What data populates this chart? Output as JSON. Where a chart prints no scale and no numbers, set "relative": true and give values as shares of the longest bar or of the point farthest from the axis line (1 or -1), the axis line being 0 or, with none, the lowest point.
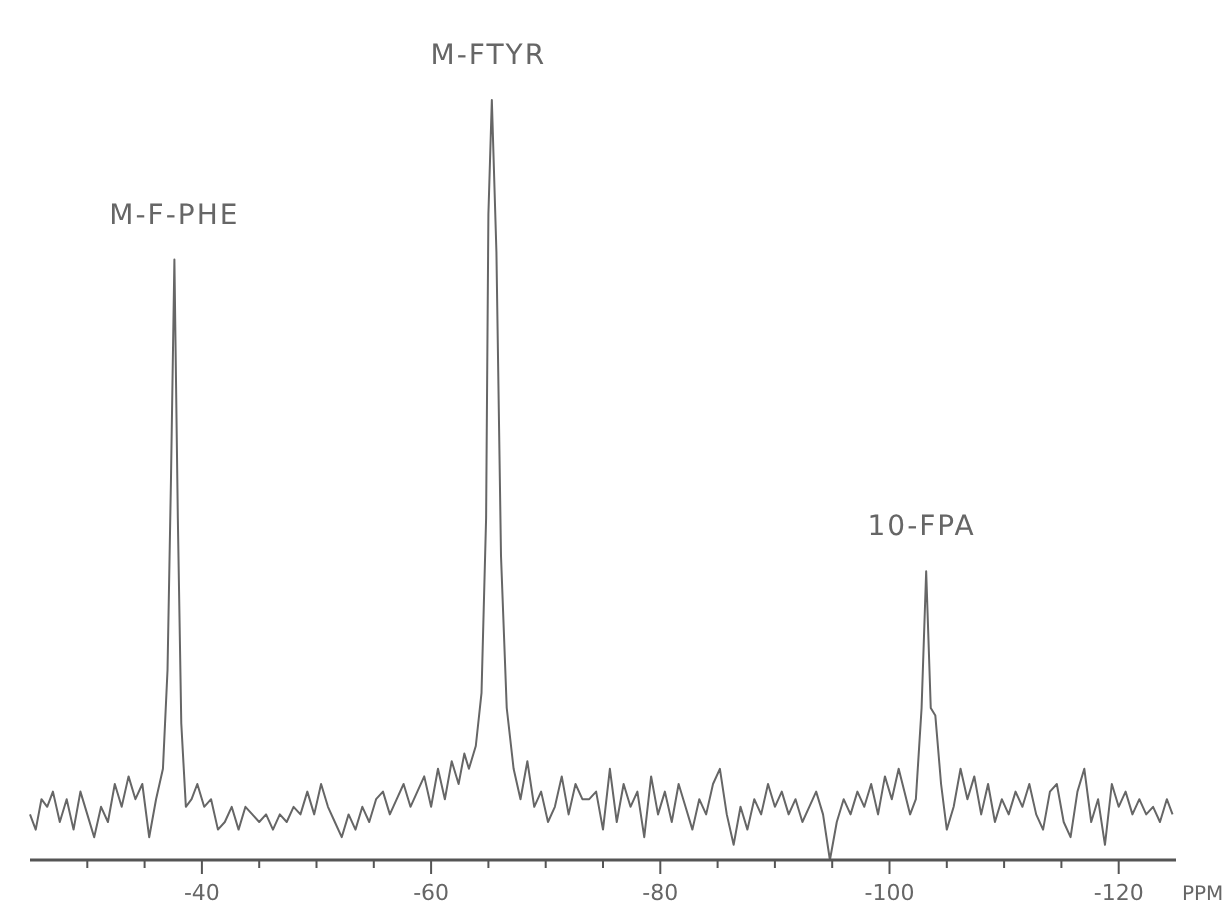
{
  "chart_data": {
    "type": "line",
    "relative": true,
    "xlabel": "PPM",
    "xlim": [
      -25,
      -125
    ],
    "xticks": [
      {
        "value": -30,
        "label": null
      },
      {
        "value": -35,
        "label": null
      },
      -40,
      {
        "value": -45,
        "label": null
      },
      {
        "value": -50,
        "label": null
      },
      {
        "value": -55,
        "label": null
      },
      -60,
      {
        "value": -65,
        "label": null
      },
      {
        "value": -70,
        "label": null
      },
      {
        "value": -75,
        "label": null
      },
      -80,
      {
        "value": -85,
        "label": null
      },
      {
        "value": -90,
        "label": null
      },
      {
        "value": -95,
        "label": null
      },
      -100,
      {
        "value": -105,
        "label": null
      },
      {
        "value": -110,
        "label": null
      },
      {
        "value": -115,
        "label": null
      },
      -120
    ],
    "annotations": [
      {
        "text": "M-F-PHE",
        "x": -37.6,
        "y": 0.79
      },
      {
        "text": "M-FTYR",
        "x": -65,
        "y": 1
      },
      {
        "text": "10-FPA",
        "x": -102.8,
        "y": 0.38
      }
    ],
    "series": [
      {
        "color": "#666666",
        "x": [
          -25,
          -25.5,
          -26,
          -26.5,
          -27,
          -27.6,
          -28.2,
          -28.8,
          -29.4,
          -30,
          -30.6,
          -31.2,
          -31.8,
          -32.4,
          -33,
          -33.6,
          -34.2,
          -34.8,
          -35.4,
          -36,
          -36.6,
          -37,
          -37.3,
          -37.6,
          -37.9,
          -38.2,
          -38.6,
          -39.1,
          -39.6,
          -40.2,
          -40.8,
          -41.4,
          -42,
          -42.6,
          -43.2,
          -43.8,
          -44.4,
          -45,
          -45.6,
          -46.2,
          -46.8,
          -47.4,
          -48,
          -48.6,
          -49.2,
          -49.8,
          -50.4,
          -51,
          -51.6,
          -52.2,
          -52.8,
          -53.4,
          -54,
          -54.6,
          -55.2,
          -55.8,
          -56.4,
          -57,
          -57.6,
          -58.2,
          -58.8,
          -59.4,
          -60,
          -60.6,
          -61.2,
          -61.8,
          -62.4,
          -62.9,
          -63.3,
          -63.9,
          -64.4,
          -64.8,
          -65,
          -65.3,
          -65.7,
          -66.1,
          -66.6,
          -67.2,
          -67.8,
          -68.4,
          -69,
          -69.6,
          -70.2,
          -70.8,
          -71.4,
          -72,
          -72.6,
          -73.2,
          -73.8,
          -74.4,
          -75,
          -75.6,
          -76.2,
          -76.8,
          -77.4,
          -78,
          -78.6,
          -79.2,
          -79.8,
          -80.4,
          -81,
          -81.6,
          -82.2,
          -82.8,
          -83.4,
          -84,
          -84.6,
          -85.2,
          -85.8,
          -86.4,
          -87,
          -87.6,
          -88.2,
          -88.8,
          -89.4,
          -90,
          -90.6,
          -91.2,
          -91.8,
          -92.4,
          -93,
          -93.6,
          -94.2,
          -94.8,
          -95.4,
          -96,
          -96.6,
          -97.2,
          -97.8,
          -98.4,
          -99,
          -99.6,
          -100.2,
          -100.8,
          -101.3,
          -101.8,
          -102.3,
          -102.8,
          -103.2,
          -103.6,
          -104,
          -104.5,
          -105,
          -105.6,
          -106.2,
          -106.8,
          -107.4,
          -108,
          -108.6,
          -109.2,
          -109.8,
          -110.4,
          -111,
          -111.6,
          -112.2,
          -112.8,
          -113.4,
          -114,
          -114.6,
          -115.2,
          -115.8,
          -116.4,
          -117,
          -117.6,
          -118.2,
          -118.8,
          -119.4,
          -120,
          -120.6,
          -121.2,
          -121.8,
          -122.4,
          -123,
          -123.6,
          -124.2,
          -124.7
        ],
        "values": [
          0.06,
          0.04,
          0.08,
          0.07,
          0.09,
          0.05,
          0.08,
          0.04,
          0.09,
          0.06,
          0.03,
          0.07,
          0.05,
          0.1,
          0.07,
          0.11,
          0.08,
          0.1,
          0.03,
          0.08,
          0.12,
          0.25,
          0.5,
          0.79,
          0.45,
          0.18,
          0.07,
          0.08,
          0.1,
          0.07,
          0.08,
          0.04,
          0.05,
          0.07,
          0.04,
          0.07,
          0.06,
          0.05,
          0.06,
          0.04,
          0.06,
          0.05,
          0.07,
          0.06,
          0.09,
          0.06,
          0.1,
          0.07,
          0.05,
          0.03,
          0.06,
          0.04,
          0.07,
          0.05,
          0.08,
          0.09,
          0.06,
          0.08,
          0.1,
          0.07,
          0.09,
          0.11,
          0.07,
          0.12,
          0.08,
          0.13,
          0.1,
          0.14,
          0.12,
          0.15,
          0.22,
          0.45,
          0.85,
          1,
          0.8,
          0.4,
          0.2,
          0.12,
          0.08,
          0.13,
          0.07,
          0.09,
          0.05,
          0.07,
          0.11,
          0.06,
          0.1,
          0.08,
          0.08,
          0.09,
          0.04,
          0.12,
          0.05,
          0.1,
          0.07,
          0.09,
          0.03,
          0.11,
          0.06,
          0.09,
          0.05,
          0.1,
          0.07,
          0.04,
          0.08,
          0.06,
          0.1,
          0.12,
          0.06,
          0.02,
          0.07,
          0.04,
          0.08,
          0.06,
          0.1,
          0.07,
          0.09,
          0.06,
          0.08,
          0.05,
          0.07,
          0.09,
          0.06,
          0.0,
          0.05,
          0.08,
          0.06,
          0.09,
          0.07,
          0.1,
          0.06,
          0.11,
          0.08,
          0.12,
          0.09,
          0.06,
          0.08,
          0.2,
          0.38,
          0.2,
          0.19,
          0.1,
          0.04,
          0.07,
          0.12,
          0.08,
          0.11,
          0.06,
          0.1,
          0.05,
          0.08,
          0.06,
          0.09,
          0.07,
          0.1,
          0.06,
          0.04,
          0.09,
          0.1,
          0.05,
          0.03,
          0.09,
          0.12,
          0.05,
          0.08,
          0.02,
          0.1,
          0.07,
          0.09,
          0.06,
          0.08,
          0.06,
          0.07,
          0.05,
          0.08,
          0.06
        ]
      }
    ]
  }
}
